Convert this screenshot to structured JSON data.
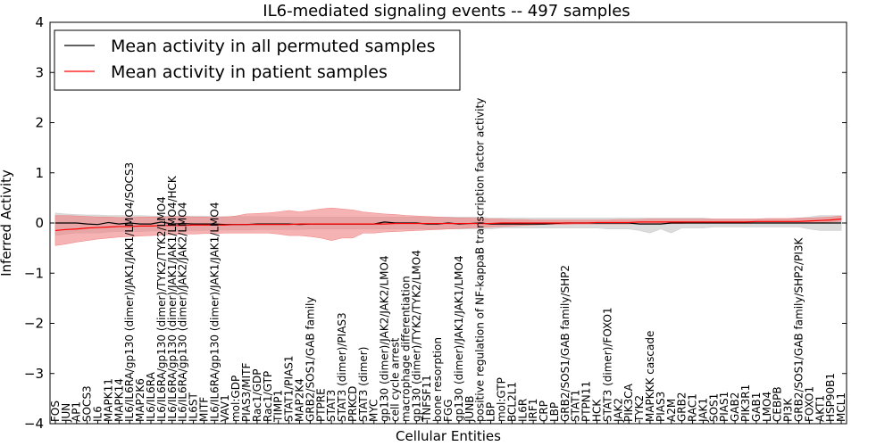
{
  "chart_data": {
    "type": "line",
    "title": "IL6-mediated signaling events -- 497 samples",
    "xlabel": "Cellular Entities",
    "ylabel": "Inferred Activity",
    "ylim": [
      -4,
      4
    ],
    "yticks": [
      "4",
      "3",
      "2",
      "1",
      "0",
      "−1",
      "−2",
      "−3",
      "−4"
    ],
    "ytick_values": [
      4,
      3,
      2,
      1,
      0,
      -1,
      -2,
      -3,
      -4
    ],
    "legend": {
      "placement": "top-left",
      "entries": [
        {
          "label": "Mean activity in all permuted samples",
          "color": "#000000"
        },
        {
          "label": "Mean activity in patient samples",
          "color": "#ff0000"
        }
      ]
    },
    "colors": {
      "permuted_line": "#000000",
      "patient_line": "#ff0000",
      "permuted_band": "#cccccc",
      "patient_band": "#f08080"
    },
    "categories": [
      "FOS",
      "JUN",
      "AP1",
      "SOCS3",
      "IL6",
      "MAPK11",
      "MAPK14",
      "IL6/IL6RA/gp130 (dimer)/JAK1/JAK1/LMO4/SOCS3",
      "MAP2K6",
      "IL6/IL6RA",
      "IL6/IL6RA/gp130 (dimer)/TYK2/TYK2/LMO4",
      "IL6/IL6RA/gp130 (dimer)/JAK1/JAK1/LMO4/HCK",
      "IL6/IL6RA/gp130 (dimer)/JAK2/JAK2/LMO4",
      "IL6ST",
      "MITF",
      "IL6/IL6RA/gp130 (dimer)/JAK1/JAK1/LMO4",
      "VAV1",
      "mol:GDP",
      "PIAS3/MITF",
      "Rac1/GDP",
      "Rac1/GTP",
      "TIMP1",
      "STAT1/PIAS1",
      "MAP2K4",
      "GRB2/SOS1/GAB family",
      "PTPRE",
      "STAT3",
      "STAT3 (dimer)/PIAS3",
      "PRKCD",
      "STAT3 (dimer)",
      "MYC",
      "gp130 (dimer)/JAK2/JAK2/LMO4",
      "cell cycle arrest",
      "macrophage differentiation",
      "gp130 (dimer)/TYK2/TYK2/LMO4",
      "TNFSF11",
      "bone resorption",
      "FGG",
      "gp130 (dimer)/JAK1/JAK1/LMO4",
      "JUNB",
      "positive regulation of NF-kappaB transcription factor activity",
      "LBP",
      "mol:GTP",
      "BCL2L1",
      "IL6R",
      "IRF1",
      "CRP",
      "LBP",
      "GRB2/SOS1/GAB family/SHP2",
      "STAT1",
      "PTPN11",
      "HCK",
      "STAT3 (dimer)/FOXO1",
      "JAK2",
      "PIK3CA",
      "TYK2",
      "MAPKKK cascade",
      "PIAS3",
      "A2M",
      "GRB2",
      "RAC1",
      "JAK1",
      "SOS1",
      "PIAS1",
      "GAB2",
      "PIK3R1",
      "GAB1",
      "LMO4",
      "CEBPB",
      "PI3K",
      "GRB2/SOS1/GAB family/SHP2/PI3K",
      "FOXO1",
      "AKT1",
      "HSP90B1",
      "MCL1"
    ],
    "series": [
      {
        "name": "Mean activity in all permuted samples",
        "values": [
          0.0,
          0.0,
          0.0,
          -0.02,
          -0.03,
          0.01,
          -0.02,
          0.0,
          -0.02,
          -0.02,
          0.02,
          -0.02,
          -0.01,
          -0.02,
          -0.02,
          -0.02,
          -0.03,
          -0.03,
          -0.03,
          -0.02,
          -0.02,
          -0.02,
          -0.02,
          -0.03,
          -0.02,
          -0.02,
          -0.02,
          -0.02,
          -0.02,
          -0.02,
          -0.02,
          0.02,
          0.0,
          0.0,
          0.0,
          -0.02,
          -0.02,
          0.0,
          -0.02,
          -0.01,
          0.0,
          -0.02,
          -0.02,
          -0.02,
          -0.02,
          -0.02,
          -0.02,
          -0.01,
          0.0,
          0.0,
          0.0,
          0.0,
          0.0,
          0.0,
          0.0,
          -0.02,
          -0.02,
          -0.02,
          0.0,
          0.0,
          0.0,
          0.0,
          0.0,
          0.0,
          0.0,
          0.0,
          0.0,
          0.0,
          0.0,
          0.0,
          0.0,
          0.0,
          0.0,
          0.0,
          0.0
        ],
        "lower": [
          -0.25,
          -0.22,
          -0.2,
          -0.2,
          -0.2,
          -0.18,
          -0.17,
          -0.17,
          -0.17,
          -0.16,
          -0.16,
          -0.15,
          -0.15,
          -0.15,
          -0.15,
          -0.14,
          -0.14,
          -0.14,
          -0.14,
          -0.13,
          -0.13,
          -0.13,
          -0.13,
          -0.13,
          -0.12,
          -0.12,
          -0.12,
          -0.12,
          -0.12,
          -0.12,
          -0.12,
          -0.12,
          -0.12,
          -0.12,
          -0.12,
          -0.12,
          -0.12,
          -0.12,
          -0.12,
          -0.12,
          -0.12,
          -0.12,
          -0.1,
          -0.1,
          -0.1,
          -0.1,
          -0.1,
          -0.1,
          -0.1,
          -0.1,
          -0.1,
          -0.1,
          -0.12,
          -0.12,
          -0.12,
          -0.15,
          -0.2,
          -0.12,
          -0.2,
          -0.1,
          -0.1,
          -0.1,
          -0.08,
          -0.08,
          -0.08,
          -0.08,
          -0.08,
          -0.08,
          -0.08,
          -0.08,
          -0.08,
          -0.12,
          -0.15,
          -0.15,
          -0.15
        ],
        "upper": [
          0.2,
          0.18,
          0.17,
          0.16,
          0.16,
          0.15,
          0.15,
          0.15,
          0.15,
          0.14,
          0.14,
          0.14,
          0.14,
          0.14,
          0.14,
          0.13,
          0.13,
          0.13,
          0.13,
          0.13,
          0.13,
          0.12,
          0.12,
          0.12,
          0.12,
          0.12,
          0.12,
          0.12,
          0.12,
          0.12,
          0.12,
          0.12,
          0.12,
          0.12,
          0.12,
          0.12,
          0.12,
          0.12,
          0.12,
          0.12,
          0.12,
          0.1,
          0.1,
          0.1,
          0.1,
          0.1,
          0.1,
          0.1,
          0.1,
          0.1,
          0.1,
          0.1,
          0.1,
          0.1,
          0.1,
          0.1,
          0.1,
          0.1,
          0.1,
          0.1,
          0.1,
          0.1,
          0.08,
          0.08,
          0.08,
          0.08,
          0.08,
          0.08,
          0.08,
          0.08,
          0.1,
          0.12,
          0.15,
          0.15,
          0.15
        ]
      },
      {
        "name": "Mean activity in patient samples",
        "values": [
          -0.15,
          -0.13,
          -0.12,
          -0.1,
          -0.09,
          -0.08,
          -0.07,
          -0.07,
          -0.06,
          -0.06,
          -0.05,
          -0.05,
          -0.05,
          -0.04,
          -0.04,
          -0.04,
          -0.04,
          -0.03,
          -0.03,
          -0.03,
          -0.03,
          -0.03,
          -0.03,
          -0.02,
          -0.02,
          -0.02,
          -0.02,
          -0.02,
          -0.02,
          -0.02,
          -0.02,
          -0.02,
          -0.01,
          -0.01,
          -0.01,
          -0.01,
          -0.01,
          -0.01,
          -0.01,
          -0.01,
          -0.01,
          -0.01,
          0.0,
          0.0,
          0.0,
          0.0,
          0.0,
          0.0,
          0.0,
          0.0,
          0.0,
          0.01,
          0.01,
          0.01,
          0.01,
          0.02,
          0.02,
          0.02,
          0.02,
          0.02,
          0.02,
          0.02,
          0.02,
          0.02,
          0.02,
          0.02,
          0.03,
          0.03,
          0.03,
          0.03,
          0.03,
          0.04,
          0.05,
          0.06,
          0.08
        ],
        "lower": [
          -0.45,
          -0.42,
          -0.38,
          -0.35,
          -0.32,
          -0.3,
          -0.28,
          -0.27,
          -0.26,
          -0.25,
          -0.24,
          -0.23,
          -0.22,
          -0.22,
          -0.21,
          -0.21,
          -0.2,
          -0.2,
          -0.2,
          -0.2,
          -0.2,
          -0.22,
          -0.25,
          -0.25,
          -0.27,
          -0.3,
          -0.35,
          -0.3,
          -0.3,
          -0.2,
          -0.2,
          -0.18,
          -0.17,
          -0.16,
          -0.15,
          -0.14,
          -0.13,
          -0.12,
          -0.11,
          -0.1,
          -0.09,
          -0.08,
          -0.07,
          -0.06,
          -0.05,
          -0.04,
          -0.03,
          -0.03,
          -0.03,
          -0.02,
          -0.02,
          -0.02,
          -0.02,
          -0.02,
          -0.02,
          -0.01,
          -0.01,
          -0.01,
          -0.01,
          -0.01,
          0.0,
          0.0,
          0.0,
          0.0,
          0.0,
          0.0,
          0.0,
          0.0,
          0.0,
          0.0,
          0.0,
          0.0,
          0.01,
          0.02,
          0.03
        ],
        "upper": [
          0.15,
          0.15,
          0.14,
          0.13,
          0.12,
          0.12,
          0.11,
          0.11,
          0.12,
          0.12,
          0.12,
          0.13,
          0.13,
          0.12,
          0.12,
          0.11,
          0.12,
          0.14,
          0.18,
          0.19,
          0.2,
          0.22,
          0.25,
          0.22,
          0.25,
          0.28,
          0.3,
          0.28,
          0.26,
          0.22,
          0.2,
          0.18,
          0.17,
          0.15,
          0.14,
          0.13,
          0.12,
          0.11,
          0.1,
          0.1,
          0.09,
          0.08,
          0.08,
          0.07,
          0.07,
          0.06,
          0.06,
          0.06,
          0.06,
          0.06,
          0.06,
          0.06,
          0.06,
          0.07,
          0.07,
          0.07,
          0.08,
          0.08,
          0.08,
          0.08,
          0.08,
          0.08,
          0.08,
          0.08,
          0.08,
          0.08,
          0.08,
          0.09,
          0.09,
          0.09,
          0.1,
          0.1,
          0.11,
          0.12,
          0.14
        ]
      }
    ]
  }
}
